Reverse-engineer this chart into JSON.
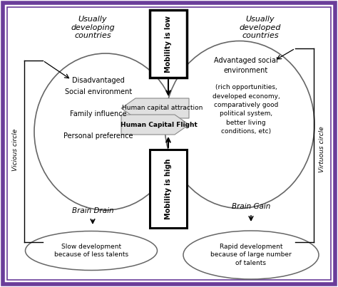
{
  "bg_color": "#ffffff",
  "border_color_outer": "#6a3d9a",
  "border_color_inner": "#6a3d9a",
  "left_title": "Usually\ndeveloping\ncountries",
  "right_title": "Usually\ndeveloped\ncountries",
  "left_ellipse_text": "Disadvantaged\nSocial environment\n\nFamily influence\n\nPersonal preference",
  "right_ellipse_text_top": "Advantaged social\nenvironment",
  "right_ellipse_text_bot": "(rich opportunities,\ndeveloped economy,\ncomparatively good\npolitical system,\nbetter living\nconditions, etc)",
  "top_box_text": "Mobility is low",
  "bottom_box_text": "Mobility is high",
  "arrow_top_label": "Human capital attraction",
  "arrow_bottom_label": "Human Capital Flight",
  "left_circle_label": "Vicious circle",
  "right_circle_label": "Virtuous circle",
  "brain_drain_label": "Brain Drain",
  "brain_gain_label": "Brain Gain",
  "left_bottom_ellipse_text": "Slow development\nbecause of less talents",
  "right_bottom_ellipse_text": "Rapid development\nbecause of large number\nof talents",
  "figw": 4.74,
  "figh": 4.03,
  "dpi": 100
}
